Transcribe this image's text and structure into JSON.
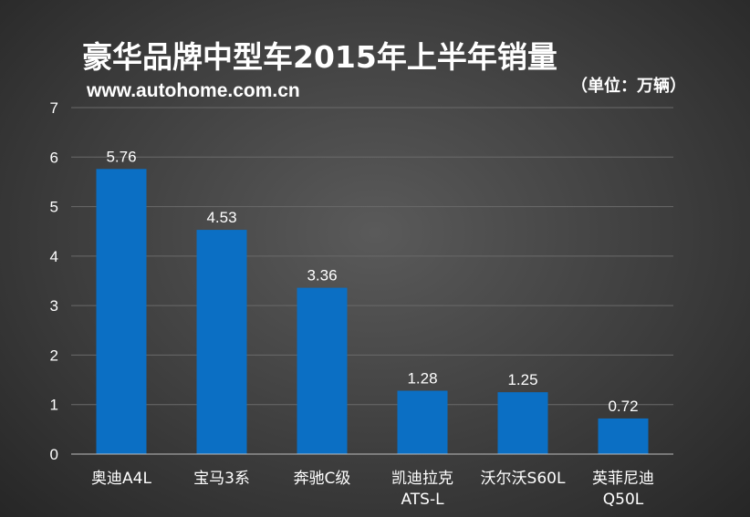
{
  "header": {
    "title": "豪华品牌中型车2015年上半年销量",
    "source": "www.autohome.com.cn",
    "unit": "（单位：万辆）"
  },
  "colors": {
    "bar": "#0b6fc4",
    "grid": "#6a6a6a",
    "axis": "#bdbdbd"
  },
  "chart_data": {
    "type": "bar",
    "categories": [
      "奥迪A4L",
      "宝马3系",
      "奔驰C级",
      "凯迪拉克ATS-L",
      "沃尔沃S60L",
      "英菲尼迪Q50L"
    ],
    "category_lines": [
      [
        "奥迪A4L"
      ],
      [
        "宝马3系"
      ],
      [
        "奔驰C级"
      ],
      [
        "凯迪拉克",
        "ATS-L"
      ],
      [
        "沃尔沃S60L"
      ],
      [
        "英菲尼迪",
        "Q50L"
      ]
    ],
    "values": [
      5.76,
      4.53,
      3.36,
      1.28,
      1.25,
      0.72
    ],
    "value_labels": [
      "5.76",
      "4.53",
      "3.36",
      "1.28",
      "1.25",
      "0.72"
    ],
    "title": "豪华品牌中型车2015年上半年销量",
    "xlabel": "",
    "ylabel": "",
    "ylim": [
      0,
      7
    ],
    "yticks": [
      "0",
      "1",
      "2",
      "3",
      "4",
      "5",
      "6",
      "7"
    ],
    "grid": true,
    "legend": "none"
  }
}
